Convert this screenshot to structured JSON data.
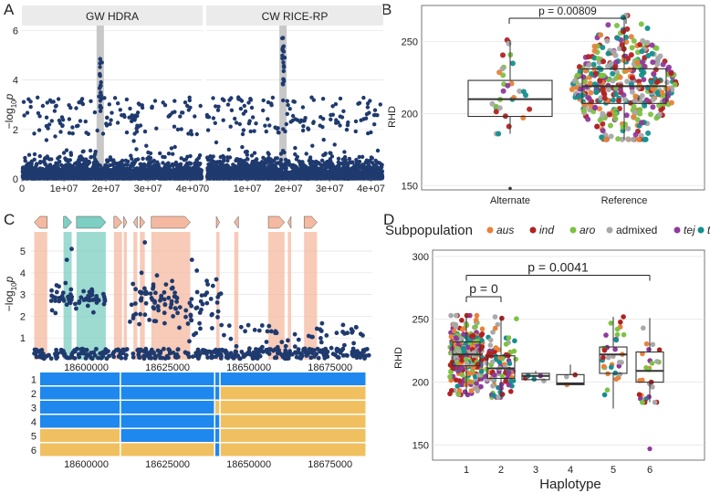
{
  "colors": {
    "navy": "#1f3a6e",
    "panel_strip": "#ebebeb",
    "grid": "#e3e3e3",
    "highlight": "#c8c8c8",
    "gene_fill": "#f4b9a0",
    "gene_teal": "#7ccfc2",
    "hap_blue": "#1e88ee",
    "hap_orange": "#f0c060",
    "subpop": {
      "aus": "#e8823a",
      "ind": "#b22222",
      "aro": "#7cc242",
      "admixed": "#a8a8a8",
      "tej": "#8e3a9c",
      "trj": "#138f8f"
    }
  },
  "chart_data": [
    {
      "panel": "A",
      "type": "scatter",
      "subtype": "manhattan",
      "facets": [
        "GW HDRA",
        "CW RICE-RP"
      ],
      "ylabel_main": "−log",
      "ylabel_sub": "10",
      "ylabel_tail": "p",
      "yticks": [
        0,
        2,
        4,
        6
      ],
      "ylim": [
        0,
        6.2
      ],
      "xticks": [
        0,
        10000000,
        20000000,
        30000000,
        40000000
      ],
      "xtick_labels": [
        "0",
        "1e+07",
        "2e+07",
        "3e+07",
        "4e+07"
      ],
      "xlim": [
        0,
        43000000
      ],
      "highlight_x": 18640000,
      "peaks": [
        {
          "facet": 0,
          "x": 18640000,
          "y": 4.85
        },
        {
          "facet": 1,
          "x": 18640000,
          "y": 5.7
        }
      ]
    },
    {
      "panel": "B",
      "type": "box",
      "categories": [
        "Alternate",
        "Reference"
      ],
      "ylabel": "RHD",
      "yticks": [
        150,
        200,
        250
      ],
      "ylim": [
        147,
        275
      ],
      "boxes": [
        {
          "name": "Alternate",
          "q1": 198,
          "median": 210,
          "q3": 223,
          "low": 186,
          "high": 251
        },
        {
          "name": "Reference",
          "q1": 207,
          "median": 219,
          "q3": 231,
          "low": 182,
          "high": 268
        }
      ],
      "annotation": "p = 0.00809"
    },
    {
      "panel": "C",
      "type": "scatter",
      "subtype": "regional",
      "ylabel_main": "−log",
      "ylabel_sub": "10",
      "ylabel_tail": "p",
      "yticks": [
        1,
        2,
        3,
        4,
        5
      ],
      "ylim": [
        0,
        5.8
      ],
      "xlim": [
        18583000,
        18688000
      ],
      "xticks": [
        18600000,
        18625000,
        18650000,
        18675000
      ],
      "xtick_labels": [
        "18600000",
        "18625000",
        "18650000",
        "18675000"
      ],
      "genes": [
        {
          "start": 18584000,
          "end": 18588000,
          "strand": "-"
        },
        {
          "start": 18593000,
          "end": 18595500,
          "strand": "+",
          "teal": true
        },
        {
          "start": 18597000,
          "end": 18606000,
          "strand": "+",
          "teal": true
        },
        {
          "start": 18608500,
          "end": 18611000,
          "strand": "+"
        },
        {
          "start": 18611500,
          "end": 18612500,
          "strand": "+"
        },
        {
          "start": 18614500,
          "end": 18615700,
          "strand": "-"
        },
        {
          "start": 18616500,
          "end": 18618000,
          "strand": "+"
        },
        {
          "start": 18620000,
          "end": 18632000,
          "strand": "+"
        },
        {
          "start": 18640000,
          "end": 18641000,
          "strand": "+"
        },
        {
          "start": 18645500,
          "end": 18646800,
          "strand": "-"
        },
        {
          "start": 18656000,
          "end": 18661000,
          "strand": "+"
        },
        {
          "start": 18662000,
          "end": 18663000,
          "strand": "-"
        },
        {
          "start": 18667000,
          "end": 18671000,
          "strand": "+"
        }
      ],
      "haplotype_rows": [
        "1",
        "2",
        "3",
        "4",
        "5",
        "6"
      ],
      "haplotype_breaks": [
        18583000,
        18609000,
        18639300,
        18641000,
        18688000
      ],
      "haplotype_states": [
        [
          "B",
          "B",
          "B",
          "B"
        ],
        [
          "B",
          "B",
          "B",
          "O"
        ],
        [
          "B",
          "B",
          "O",
          "O"
        ],
        [
          "B",
          "B",
          "B",
          "O"
        ],
        [
          "O",
          "B",
          "B",
          "O"
        ],
        [
          "O",
          "O",
          "B",
          "O"
        ]
      ]
    },
    {
      "panel": "D",
      "type": "box",
      "categories": [
        "1",
        "2",
        "3",
        "4",
        "5",
        "6"
      ],
      "xlabel": "Haplotype",
      "ylabel": "RHD",
      "yticks": [
        150,
        200,
        250,
        300
      ],
      "ylim": [
        138,
        305
      ],
      "boxes": [
        {
          "q1": 213,
          "median": 222,
          "q3": 232,
          "low": 190,
          "high": 253
        },
        {
          "q1": 203,
          "median": 211,
          "q3": 221,
          "low": 188,
          "high": 252
        },
        {
          "q1": 202,
          "median": 205,
          "q3": 207,
          "low": 201,
          "high": 209
        },
        {
          "q1": 198,
          "median": 199,
          "q3": 206,
          "low": 198,
          "high": 214
        },
        {
          "q1": 207,
          "median": 222,
          "q3": 228,
          "low": 179,
          "high": 252
        },
        {
          "q1": 200,
          "median": 209,
          "q3": 224,
          "low": 184,
          "high": 251
        }
      ],
      "annotations": [
        {
          "label": "p = 0",
          "from": 1,
          "to": 2,
          "y": 268
        },
        {
          "label": "p = 0.0041",
          "from": 1,
          "to": 6,
          "y": 285
        }
      ],
      "legend_title": "Subpopulation",
      "legend": [
        {
          "label": "aus",
          "italic": true
        },
        {
          "label": "ind",
          "italic": true
        },
        {
          "label": "aro",
          "italic": true
        },
        {
          "label": "admixed",
          "italic": false
        },
        {
          "label": "tej",
          "italic": true
        },
        {
          "label": "trj",
          "italic": true
        }
      ]
    }
  ],
  "labels": {
    "A": "A",
    "B": "B",
    "C": "C",
    "D": "D"
  }
}
